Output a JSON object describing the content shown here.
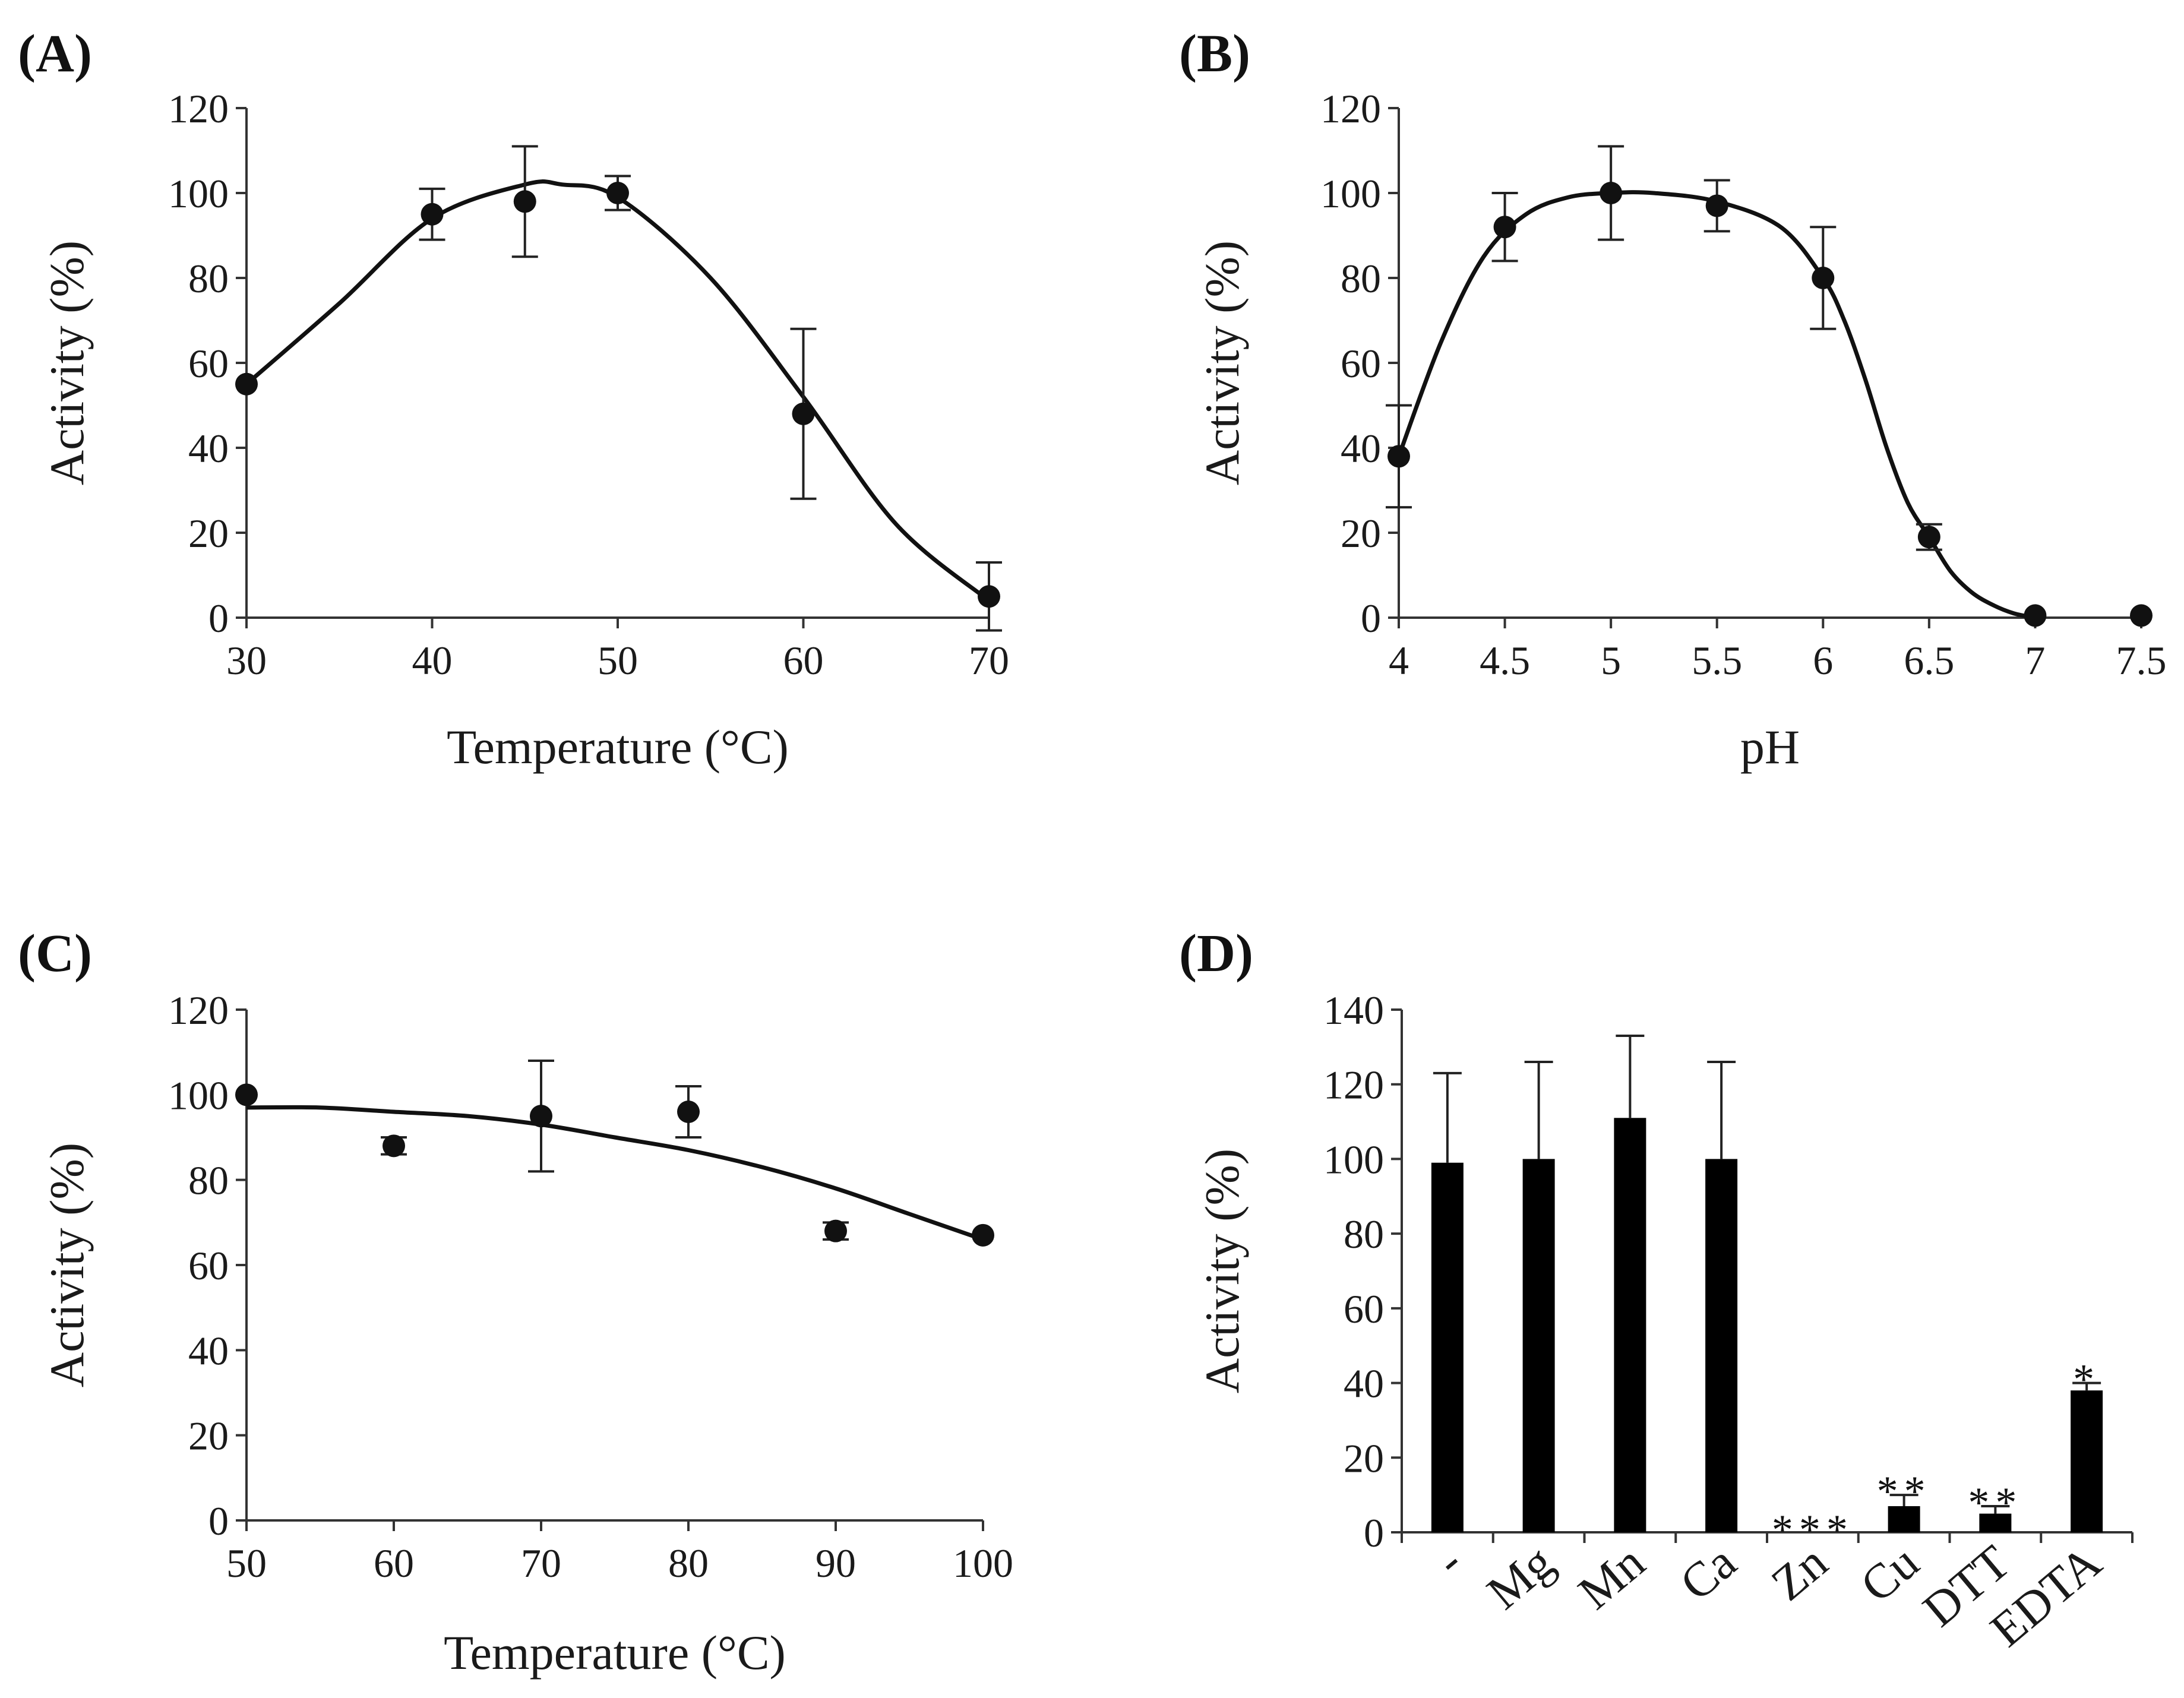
{
  "figure": {
    "description_free": true
  },
  "chart_data": [
    {
      "id": "A",
      "panel_label": "(A)",
      "type": "scatter",
      "title": "",
      "xlabel": "Temperature (°C)",
      "ylabel": "Activity (%)",
      "xlim": [
        30,
        70
      ],
      "ylim": [
        0,
        120
      ],
      "xticks": [
        30,
        40,
        50,
        60,
        70
      ],
      "yticks": [
        0,
        20,
        40,
        60,
        80,
        100,
        120
      ],
      "series": [
        {
          "name": "data",
          "x": [
            30,
            40,
            45,
            50,
            60,
            70
          ],
          "y": [
            55,
            95,
            98,
            100,
            48,
            5
          ],
          "err": [
            0,
            6,
            13,
            4,
            20,
            8
          ]
        }
      ],
      "fit": {
        "x": [
          30,
          35,
          40,
          45,
          47,
          50,
          55,
          60,
          65,
          70
        ],
        "y": [
          55,
          74,
          94,
          102,
          102,
          99,
          80,
          52,
          22,
          4
        ]
      }
    },
    {
      "id": "B",
      "panel_label": "(B)",
      "type": "scatter",
      "title": "",
      "xlabel": "pH",
      "ylabel": "Activity (%)",
      "xlim": [
        4,
        7.5
      ],
      "ylim": [
        0,
        120
      ],
      "xticks": [
        "4",
        "4.5",
        "5",
        "5.5",
        "6",
        "6.5",
        "7",
        "7.5"
      ],
      "yticks": [
        0,
        20,
        40,
        60,
        80,
        100,
        120
      ],
      "series": [
        {
          "name": "data",
          "x": [
            4,
            4.5,
            5,
            5.5,
            6,
            6.5,
            7,
            7.5
          ],
          "y": [
            38,
            92,
            100,
            97,
            80,
            19,
            0.5,
            0.5
          ],
          "err": [
            12,
            8,
            11,
            6,
            12,
            3,
            0,
            0
          ]
        }
      ],
      "fit": {
        "x": [
          4,
          4.2,
          4.4,
          4.6,
          4.8,
          5,
          5.2,
          5.5,
          5.8,
          6,
          6.1,
          6.2,
          6.3,
          6.4,
          6.5,
          6.6,
          6.7,
          6.8,
          6.9,
          7
        ],
        "y": [
          38,
          65,
          85,
          95,
          99,
          100,
          100,
          98,
          92,
          80,
          70,
          56,
          40,
          27,
          19,
          11,
          6,
          3,
          1,
          0
        ]
      }
    },
    {
      "id": "C",
      "panel_label": "(C)",
      "type": "scatter",
      "title": "",
      "xlabel": "Temperature (°C)",
      "ylabel": "Activity (%)",
      "xlim": [
        50,
        100
      ],
      "ylim": [
        0,
        120
      ],
      "xticks": [
        50,
        60,
        70,
        80,
        90,
        100
      ],
      "yticks": [
        0,
        20,
        40,
        60,
        80,
        100,
        120
      ],
      "series": [
        {
          "name": "data",
          "x": [
            50,
            60,
            70,
            80,
            90,
            100
          ],
          "y": [
            100,
            88,
            95,
            96,
            68,
            67
          ],
          "err": [
            0,
            2,
            13,
            6,
            2,
            0
          ]
        }
      ],
      "fit": {
        "x": [
          50,
          55,
          60,
          65,
          70,
          75,
          80,
          85,
          90,
          95,
          100
        ],
        "y": [
          97,
          97,
          96,
          95,
          93,
          90,
          87,
          83,
          78,
          72,
          66
        ]
      }
    },
    {
      "id": "D",
      "panel_label": "(D)",
      "type": "bar",
      "title": "",
      "xlabel": "",
      "ylabel": "Activity (%)",
      "ylim": [
        0,
        140
      ],
      "yticks": [
        0,
        20,
        40,
        60,
        80,
        100,
        120,
        140
      ],
      "categories": [
        "-",
        "Mg",
        "Mn",
        "Ca",
        "Zn",
        "Cu",
        "DTT",
        "EDTA"
      ],
      "values": [
        99,
        100,
        111,
        100,
        0,
        7,
        5,
        38
      ],
      "errors": [
        24,
        26,
        22,
        26,
        0,
        3,
        2,
        2
      ],
      "significance": [
        "",
        "",
        "",
        "",
        "***",
        "**",
        "**",
        "*"
      ]
    }
  ]
}
